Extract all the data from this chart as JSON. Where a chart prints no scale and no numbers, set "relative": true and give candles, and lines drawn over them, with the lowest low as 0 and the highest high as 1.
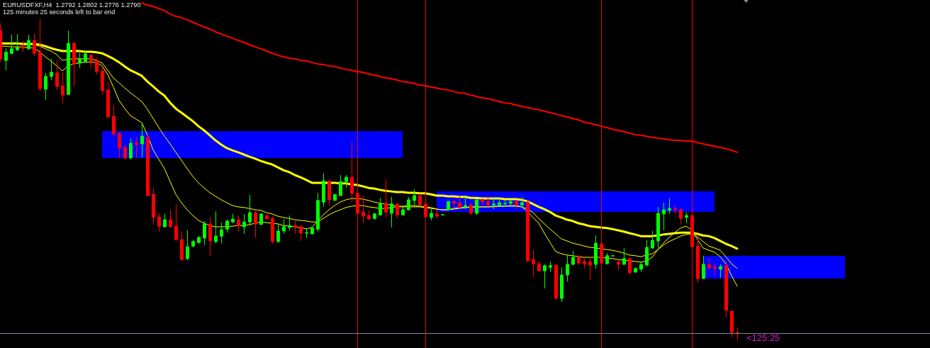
{
  "chart_data": {
    "type": "candlestick",
    "relative": true,
    "title": "EURUSDFXF,H4  1.2792 1.2802 1.2776 1.2790",
    "subtitle": "125 minutes 25 seconds left to bar end",
    "categories": [
      null,
      null,
      null,
      null,
      null,
      null,
      null,
      null,
      null,
      null,
      null,
      null,
      null,
      null,
      null,
      null,
      null,
      null,
      null,
      null,
      null,
      null,
      null,
      null,
      null,
      null,
      null,
      null,
      null,
      null,
      null,
      null,
      null,
      null,
      null,
      null,
      null,
      null,
      null,
      null,
      null,
      null,
      null,
      null,
      null,
      null,
      null,
      null,
      null,
      null,
      null,
      null,
      null,
      null,
      null,
      null,
      null,
      null,
      null,
      null,
      null,
      null,
      null,
      null,
      null,
      null,
      null,
      null,
      null,
      null,
      null,
      null,
      null,
      null,
      null,
      null,
      null,
      null,
      null,
      null,
      null,
      null,
      null,
      null,
      null,
      null,
      null,
      null,
      null,
      null,
      null,
      null,
      null,
      null,
      null,
      null,
      null,
      null,
      null,
      null,
      null,
      null,
      null,
      null,
      null,
      null,
      null,
      null,
      null,
      null,
      null,
      null,
      null,
      null,
      null,
      null,
      null,
      null,
      null,
      null,
      null,
      null,
      null,
      null,
      null,
      null,
      null,
      null,
      null,
      null,
      null,
      null,
      null,
      null,
      null,
      null,
      null,
      null,
      null,
      null,
      null,
      null,
      null,
      null,
      null,
      null,
      null,
      null,
      null,
      null
    ],
    "ohlc": [
      [
        0.964,
        0.986,
        0.867,
        0.876
      ],
      [
        0.871,
        0.909,
        0.84,
        0.896
      ],
      [
        0.893,
        0.951,
        0.889,
        0.907
      ],
      [
        0.904,
        0.953,
        0.9,
        0.911
      ],
      [
        0.915,
        0.931,
        0.898,
        0.909
      ],
      [
        0.907,
        0.951,
        0.904,
        0.933
      ],
      [
        0.933,
        0.953,
        0.885,
        0.893
      ],
      [
        0.896,
        1,
        0.774,
        0.783
      ],
      [
        0.781,
        0.832,
        0.748,
        0.821
      ],
      [
        0.821,
        0.876,
        0.81,
        0.834
      ],
      [
        0.832,
        0.869,
        0.779,
        0.79
      ],
      [
        0.792,
        0.834,
        0.737,
        0.763
      ],
      [
        0.765,
        0.964,
        0.765,
        0.924
      ],
      [
        0.924,
        0.929,
        0.79,
        0.86
      ],
      [
        0.863,
        0.9,
        0.847,
        0.874
      ],
      [
        0.867,
        0.9,
        0.865,
        0.891
      ],
      [
        0.887,
        0.889,
        0.849,
        0.867
      ],
      [
        0.869,
        0.88,
        0.827,
        0.836
      ],
      [
        0.838,
        0.852,
        0.765,
        0.777
      ],
      [
        0.779,
        0.803,
        0.695,
        0.695
      ],
      [
        0.697,
        0.732,
        0.633,
        0.642
      ],
      [
        0.644,
        0.646,
        0.567,
        0.598
      ],
      [
        0.6,
        0.609,
        0.563,
        0.567
      ],
      [
        0.567,
        0.629,
        0.563,
        0.613
      ],
      [
        0.615,
        0.633,
        0.569,
        0.609
      ],
      [
        0.611,
        0.675,
        0.569,
        0.635
      ],
      [
        0.631,
        0.64,
        0.45,
        0.45
      ],
      [
        0.454,
        0.474,
        0.36,
        0.382
      ],
      [
        0.384,
        0.397,
        0.338,
        0.355
      ],
      [
        0.353,
        0.393,
        0.351,
        0.375
      ],
      [
        0.375,
        0.406,
        0.351,
        0.353
      ],
      [
        0.355,
        0.424,
        0.309,
        0.313
      ],
      [
        0.313,
        0.338,
        0.249,
        0.251
      ],
      [
        0.254,
        0.342,
        0.249,
        0.291
      ],
      [
        0.293,
        0.313,
        0.289,
        0.307
      ],
      [
        0.304,
        0.324,
        0.3,
        0.32
      ],
      [
        0.318,
        0.371,
        0.296,
        0.362
      ],
      [
        0.362,
        0.384,
        0.263,
        0.309
      ],
      [
        0.307,
        0.401,
        0.302,
        0.324
      ],
      [
        0.324,
        0.366,
        0.302,
        0.344
      ],
      [
        0.346,
        0.375,
        0.335,
        0.371
      ],
      [
        0.368,
        0.393,
        0.364,
        0.377
      ],
      [
        0.375,
        0.388,
        0.338,
        0.357
      ],
      [
        0.353,
        0.393,
        0.331,
        0.368
      ],
      [
        0.368,
        0.452,
        0.357,
        0.397
      ],
      [
        0.397,
        0.404,
        0.318,
        0.362
      ],
      [
        0.36,
        0.393,
        0.36,
        0.393
      ],
      [
        0.388,
        0.39,
        0.377,
        0.377
      ],
      [
        0.379,
        0.384,
        0.3,
        0.307
      ],
      [
        0.307,
        0.364,
        0.302,
        0.34
      ],
      [
        0.34,
        0.377,
        0.331,
        0.353
      ],
      [
        0.351,
        0.388,
        0.342,
        0.357
      ],
      [
        0.357,
        0.371,
        0.331,
        0.351
      ],
      [
        0.353,
        0.36,
        0.309,
        0.333
      ],
      [
        0.333,
        0.349,
        0.318,
        0.335
      ],
      [
        0.331,
        0.353,
        0.329,
        0.349
      ],
      [
        0.346,
        0.459,
        0.338,
        0.435
      ],
      [
        0.43,
        0.521,
        0.415,
        0.496
      ],
      [
        0.496,
        0.496,
        0.419,
        0.437
      ],
      [
        0.435,
        0.454,
        0.435,
        0.454
      ],
      [
        0.45,
        0.514,
        0.45,
        0.494
      ],
      [
        0.494,
        0.514,
        0.474,
        0.507
      ],
      [
        0.507,
        0.618,
        0.432,
        0.457
      ],
      [
        0.457,
        0.457,
        0.395,
        0.395
      ],
      [
        0.399,
        0.45,
        0.364,
        0.386
      ],
      [
        0.388,
        0.404,
        0.377,
        0.377
      ],
      [
        0.379,
        0.397,
        0.375,
        0.393
      ],
      [
        0.39,
        0.443,
        0.39,
        0.424
      ],
      [
        0.426,
        0.501,
        0.382,
        0.399
      ],
      [
        0.395,
        0.446,
        0.351,
        0.424
      ],
      [
        0.424,
        0.424,
        0.379,
        0.39
      ],
      [
        0.39,
        0.415,
        0.388,
        0.406
      ],
      [
        0.406,
        0.446,
        0.404,
        0.437
      ],
      [
        0.435,
        0.47,
        0.421,
        0.45
      ],
      [
        0.45,
        0.457,
        0.419,
        0.421
      ],
      [
        0.424,
        0.424,
        0.384,
        0.384
      ],
      [
        0.382,
        0.41,
        0.373,
        0.395
      ],
      [
        0.393,
        0.406,
        0.379,
        0.386
      ],
      [
        0.39,
        0.391,
        0.39,
        0.391
      ],
      [
        0.406,
        0.432,
        0.404,
        0.432
      ],
      [
        0.432,
        0.437,
        0.41,
        0.426
      ],
      [
        0.428,
        0.448,
        0.41,
        0.413
      ],
      [
        0.415,
        0.446,
        0.408,
        0.419
      ],
      [
        0.421,
        0.428,
        0.39,
        0.395
      ],
      [
        0.395,
        0.437,
        0.39,
        0.437
      ],
      [
        0.437,
        0.441,
        0.415,
        0.43
      ],
      [
        0.432,
        0.45,
        0.419,
        0.421
      ],
      [
        0.421,
        0.441,
        0.408,
        0.424
      ],
      [
        0.421,
        0.441,
        0.419,
        0.428
      ],
      [
        0.424,
        0.437,
        0.415,
        0.426
      ],
      [
        0.426,
        0.437,
        0.421,
        0.432
      ],
      [
        0.432,
        0.435,
        0.408,
        0.421
      ],
      [
        0.421,
        0.446,
        0.413,
        0.428
      ],
      [
        0.43,
        0.437,
        0.243,
        0.247
      ],
      [
        0.251,
        0.28,
        0.196,
        0.238
      ],
      [
        0.238,
        0.245,
        0.214,
        0.216
      ],
      [
        0.216,
        0.236,
        0.161,
        0.232
      ],
      [
        0.227,
        0.245,
        0.212,
        0.232
      ],
      [
        0.234,
        0.234,
        0.13,
        0.13
      ],
      [
        0.13,
        0.227,
        0.119,
        0.203
      ],
      [
        0.203,
        0.267,
        0.183,
        0.236
      ],
      [
        0.236,
        0.278,
        0.234,
        0.258
      ],
      [
        0.258,
        0.265,
        0.234,
        0.24
      ],
      [
        0.245,
        0.258,
        0.223,
        0.238
      ],
      [
        0.243,
        0.26,
        0.188,
        0.234
      ],
      [
        0.236,
        0.326,
        0.223,
        0.302
      ],
      [
        0.3,
        0.3,
        0.24,
        0.24
      ],
      [
        0.238,
        0.271,
        0.236,
        0.263
      ],
      [
        0.262,
        0.263,
        0.262,
        0.263
      ],
      [
        0.243,
        0.249,
        0.218,
        0.236
      ],
      [
        0.236,
        0.287,
        0.236,
        0.254
      ],
      [
        0.254,
        0.254,
        0.205,
        0.21
      ],
      [
        0.212,
        0.227,
        0.21,
        0.223
      ],
      [
        0.221,
        0.243,
        0.212,
        0.236
      ],
      [
        0.234,
        0.311,
        0.229,
        0.289
      ],
      [
        0.287,
        0.34,
        0.285,
        0.311
      ],
      [
        0.309,
        0.415,
        0.287,
        0.395
      ],
      [
        0.393,
        0.428,
        0.342,
        0.406
      ],
      [
        0.404,
        0.441,
        0.393,
        0.41
      ],
      [
        0.41,
        0.419,
        0.393,
        0.406
      ],
      [
        0.406,
        0.41,
        0.36,
        0.379
      ],
      [
        0.382,
        0.397,
        0.364,
        0.388
      ],
      [
        0.388,
        0.388,
        0.291,
        0.291
      ],
      [
        0.293,
        0.318,
        0.179,
        0.192
      ],
      [
        0.192,
        0.263,
        0.19,
        0.236
      ],
      [
        0.236,
        0.254,
        0.221,
        0.225
      ],
      [
        0.227,
        0.24,
        0.201,
        0.223
      ],
      [
        0.221,
        0.236,
        0.194,
        0.229
      ],
      [
        0.232,
        0.245,
        0.071,
        0.093
      ],
      [
        0.09,
        0.09,
        0.009,
        0.024
      ],
      [
        0.024,
        0.04,
        0,
        0.021
      ],
      null,
      null,
      null,
      null,
      null,
      null,
      null,
      null,
      null,
      null,
      null,
      null,
      null,
      null,
      null,
      null,
      null,
      null,
      null
    ],
    "series": [
      {
        "type": "line",
        "color": "#ff0000",
        "values": [
          null,
          null,
          null,
          null,
          null,
          null,
          null,
          null,
          null,
          null,
          null,
          null,
          null,
          null,
          null,
          null,
          null,
          null,
          null,
          null,
          null,
          null,
          null,
          null,
          null,
          1.05,
          1.043,
          1.039,
          1.032,
          1.026,
          1.015,
          1.008,
          1.004,
          0.997,
          0.99,
          0.982,
          0.975,
          0.968,
          0.96,
          0.953,
          0.946,
          0.94,
          0.933,
          0.927,
          0.92,
          0.913,
          0.907,
          0.9,
          0.893,
          0.887,
          0.882,
          0.878,
          0.876,
          0.871,
          0.869,
          0.865,
          0.86,
          0.858,
          0.854,
          0.852,
          0.847,
          0.843,
          0.84,
          0.836,
          0.834,
          0.829,
          0.825,
          0.821,
          0.816,
          0.814,
          0.81,
          0.805,
          0.803,
          0.799,
          0.794,
          0.792,
          0.788,
          0.785,
          0.781,
          0.779,
          0.774,
          0.77,
          0.768,
          0.763,
          0.759,
          0.754,
          0.752,
          0.748,
          0.743,
          0.739,
          0.737,
          0.732,
          0.728,
          0.724,
          0.721,
          0.717,
          0.713,
          0.708,
          0.704,
          0.699,
          0.695,
          0.69,
          0.686,
          0.679,
          0.675,
          0.671,
          0.666,
          0.662,
          0.657,
          0.653,
          0.649,
          0.644,
          0.64,
          0.638,
          0.635,
          0.631,
          0.629,
          0.627,
          0.624,
          0.622,
          0.622,
          0.62,
          0.62,
          0.615,
          0.611,
          0.607,
          0.604,
          0.6,
          0.596,
          0.591,
          0.585,
          null,
          null,
          null,
          null,
          null,
          null,
          null,
          null,
          null,
          null,
          null,
          null,
          null,
          null,
          null,
          null,
          null,
          null,
          null
        ]
      },
      {
        "type": "line",
        "color": "#ffff00",
        "values": [
          0.924,
          0.924,
          0.924,
          0.924,
          0.922,
          0.922,
          0.922,
          0.92,
          0.915,
          0.909,
          0.904,
          0.9,
          0.9,
          0.9,
          0.9,
          0.898,
          0.898,
          0.896,
          0.893,
          0.885,
          0.876,
          0.865,
          0.852,
          0.84,
          0.832,
          0.823,
          0.805,
          0.79,
          0.774,
          0.761,
          0.739,
          0.721,
          0.708,
          0.695,
          0.682,
          0.666,
          0.653,
          0.638,
          0.622,
          0.609,
          0.598,
          0.591,
          0.585,
          0.578,
          0.571,
          0.565,
          0.558,
          0.552,
          0.547,
          0.538,
          0.529,
          0.523,
          0.514,
          0.507,
          0.499,
          0.49,
          0.49,
          0.49,
          0.49,
          0.49,
          0.488,
          0.488,
          0.485,
          0.483,
          0.479,
          0.474,
          0.472,
          0.468,
          0.465,
          0.463,
          0.461,
          0.461,
          0.459,
          0.459,
          0.457,
          0.457,
          0.454,
          0.45,
          0.45,
          0.448,
          0.448,
          0.446,
          0.446,
          0.443,
          0.443,
          0.441,
          0.441,
          0.441,
          0.441,
          0.439,
          0.439,
          0.439,
          0.437,
          0.432,
          0.424,
          0.415,
          0.408,
          0.399,
          0.388,
          0.382,
          0.375,
          0.371,
          0.364,
          0.36,
          0.355,
          0.353,
          0.351,
          0.349,
          0.346,
          0.342,
          0.338,
          0.333,
          0.329,
          0.324,
          0.324,
          0.324,
          0.326,
          0.329,
          0.331,
          0.333,
          0.335,
          0.335,
          0.335,
          0.331,
          0.326,
          0.324,
          0.318,
          0.309,
          0.3,
          0.293,
          0.285,
          null,
          null,
          null,
          null,
          null,
          null,
          null,
          null,
          null,
          null,
          null,
          null,
          null,
          null,
          null,
          null,
          null,
          null,
          null
        ]
      },
      {
        "type": "line",
        "color": "#ffff00",
        "values": [
          0.915,
          0.915,
          0.913,
          0.913,
          0.913,
          0.911,
          0.909,
          0.898,
          0.882,
          0.869,
          0.854,
          0.838,
          0.854,
          0.86,
          0.863,
          0.865,
          0.865,
          0.865,
          0.854,
          0.827,
          0.788,
          0.746,
          0.721,
          0.699,
          0.688,
          0.677,
          0.638,
          0.593,
          0.563,
          0.534,
          0.494,
          0.454,
          0.428,
          0.406,
          0.388,
          0.373,
          0.364,
          0.357,
          0.353,
          0.353,
          0.353,
          0.355,
          0.357,
          0.357,
          0.36,
          0.364,
          0.368,
          0.366,
          0.364,
          0.362,
          0.357,
          0.355,
          0.353,
          0.351,
          0.346,
          0.351,
          0.371,
          0.39,
          0.406,
          0.419,
          0.43,
          0.437,
          0.441,
          0.441,
          0.439,
          0.435,
          0.43,
          0.426,
          0.424,
          0.421,
          0.417,
          0.417,
          0.419,
          0.419,
          0.417,
          0.415,
          0.413,
          0.408,
          0.406,
          0.406,
          0.41,
          0.413,
          0.413,
          0.415,
          0.415,
          0.415,
          0.415,
          0.417,
          0.417,
          0.417,
          0.419,
          0.419,
          0.415,
          0.401,
          0.382,
          0.364,
          0.333,
          0.304,
          0.276,
          0.269,
          0.265,
          0.263,
          0.26,
          0.258,
          0.258,
          0.258,
          0.258,
          0.256,
          0.254,
          0.251,
          0.249,
          0.247,
          0.245,
          0.243,
          0.247,
          0.258,
          0.282,
          0.302,
          0.32,
          0.335,
          0.349,
          0.355,
          0.342,
          0.313,
          0.287,
          0.28,
          0.274,
          0.26,
          0.238,
          0.201,
          0.168,
          null,
          null,
          null,
          null,
          null,
          null,
          null,
          null,
          null,
          null,
          null,
          null,
          null,
          null,
          null,
          null,
          null,
          null,
          null
        ]
      },
      {
        "type": "line",
        "color": "#ffff00",
        "values": [
          0.922,
          0.922,
          0.922,
          0.922,
          0.92,
          0.92,
          0.92,
          0.915,
          0.907,
          0.9,
          0.889,
          0.871,
          0.874,
          0.876,
          0.876,
          0.876,
          0.876,
          0.871,
          0.863,
          0.84,
          0.816,
          0.801,
          0.785,
          0.77,
          0.757,
          0.743,
          0.719,
          0.69,
          0.662,
          0.635,
          0.611,
          0.585,
          0.56,
          0.534,
          0.51,
          0.49,
          0.474,
          0.459,
          0.448,
          0.437,
          0.428,
          0.419,
          0.415,
          0.413,
          0.41,
          0.406,
          0.404,
          0.397,
          0.393,
          0.386,
          0.382,
          0.379,
          0.375,
          0.373,
          0.371,
          0.368,
          0.368,
          0.379,
          0.39,
          0.399,
          0.406,
          0.413,
          0.417,
          0.419,
          0.419,
          0.415,
          0.413,
          0.41,
          0.41,
          0.413,
          0.415,
          0.415,
          0.415,
          0.415,
          0.415,
          0.413,
          0.41,
          0.408,
          0.406,
          0.406,
          0.408,
          0.41,
          0.413,
          0.413,
          0.415,
          0.415,
          0.415,
          0.415,
          0.417,
          0.417,
          0.417,
          0.417,
          0.415,
          0.408,
          0.397,
          0.379,
          0.362,
          0.346,
          0.331,
          0.315,
          0.309,
          0.302,
          0.298,
          0.293,
          0.289,
          0.287,
          0.285,
          0.282,
          0.28,
          0.276,
          0.271,
          0.265,
          0.263,
          0.26,
          0.265,
          0.269,
          0.282,
          0.296,
          0.307,
          0.315,
          0.324,
          0.329,
          0.331,
          0.322,
          0.307,
          0.293,
          0.287,
          0.28,
          0.26,
          0.238,
          0.223,
          null,
          null,
          null,
          null,
          null,
          null,
          null,
          null,
          null,
          null,
          null,
          null,
          null,
          null,
          null,
          null,
          null,
          null,
          null
        ]
      }
    ],
    "bands": [
      {
        "axis": "y",
        "from": 0.568,
        "to": 0.651,
        "color": "#0000ff"
      },
      {
        "axis": "y",
        "from": 0.399,
        "to": 0.463,
        "color": "#0000ff"
      },
      {
        "axis": "y",
        "from": 0.193,
        "to": 0.263,
        "color": "#0000ff"
      }
    ],
    "ref_lines": [
      {
        "axis": "y",
        "value": 0.021,
        "color": "#778899"
      }
    ],
    "annotations": [
      {
        "text": "<125:25",
        "y": 0.021
      }
    ]
  }
}
